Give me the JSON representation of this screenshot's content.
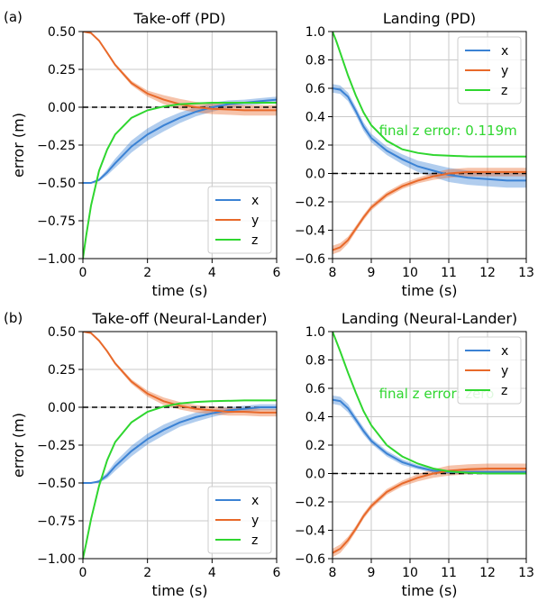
{
  "panel_labels": [
    "(a)",
    "(b)"
  ],
  "colors": {
    "x": "#3b82d4",
    "y": "#e8692a",
    "z": "#2fd62f"
  },
  "chart_data": [
    {
      "type": "line",
      "title": "Take-off (PD)",
      "xlabel": "time (s)",
      "ylabel": "error (m)",
      "xlim": [
        0,
        6
      ],
      "ylim": [
        -1.0,
        0.5
      ],
      "xticks": [
        0,
        2,
        4,
        6
      ],
      "xtick_labels": [
        "0",
        "2",
        "4",
        "6"
      ],
      "yticks": [
        -1.0,
        -0.75,
        -0.5,
        -0.25,
        0.0,
        0.25,
        0.5
      ],
      "ytick_labels": [
        "−1.00",
        "−0.75",
        "−0.50",
        "−0.25",
        "0.00",
        "0.25",
        "0.50"
      ],
      "grid": true,
      "reference_line": 0.0,
      "legend": "bottom-right",
      "annotation": "",
      "series": [
        {
          "name": "x",
          "x": [
            0,
            0.25,
            0.5,
            0.75,
            1.0,
            1.5,
            2.0,
            2.5,
            3.0,
            3.5,
            4.0,
            4.5,
            5.0,
            5.5,
            6.0
          ],
          "y": [
            -0.5,
            -0.5,
            -0.48,
            -0.43,
            -0.37,
            -0.26,
            -0.18,
            -0.12,
            -0.07,
            -0.03,
            0.0,
            0.02,
            0.03,
            0.04,
            0.05
          ],
          "band": [
            0,
            0,
            0.01,
            0.02,
            0.03,
            0.04,
            0.04,
            0.04,
            0.035,
            0.03,
            0.03,
            0.025,
            0.02,
            0.02,
            0.02
          ]
        },
        {
          "name": "y",
          "x": [
            0,
            0.25,
            0.5,
            0.75,
            1.0,
            1.5,
            2.0,
            2.5,
            3.0,
            3.5,
            4.0,
            4.5,
            5.0,
            5.5,
            6.0
          ],
          "y": [
            0.5,
            0.49,
            0.44,
            0.36,
            0.28,
            0.16,
            0.09,
            0.05,
            0.02,
            0.0,
            -0.01,
            -0.015,
            -0.02,
            -0.02,
            -0.02
          ],
          "band": [
            0,
            0,
            0.005,
            0.01,
            0.01,
            0.015,
            0.02,
            0.03,
            0.035,
            0.035,
            0.035,
            0.035,
            0.035,
            0.035,
            0.035
          ]
        },
        {
          "name": "z",
          "x": [
            0,
            0.1,
            0.25,
            0.5,
            0.75,
            1.0,
            1.5,
            2.0,
            2.5,
            3.0,
            3.5,
            4.0,
            5.0,
            6.0
          ],
          "y": [
            -1.0,
            -0.85,
            -0.65,
            -0.42,
            -0.28,
            -0.18,
            -0.07,
            -0.02,
            0.005,
            0.02,
            0.025,
            0.03,
            0.03,
            0.03
          ],
          "band": [
            0,
            0,
            0,
            0,
            0,
            0,
            0,
            0,
            0,
            0,
            0,
            0,
            0,
            0
          ]
        }
      ]
    },
    {
      "type": "line",
      "title": "Landing (PD)",
      "xlabel": "time (s)",
      "ylabel": "",
      "xlim": [
        8,
        13
      ],
      "ylim": [
        -0.6,
        1.0
      ],
      "xticks": [
        8,
        9,
        10,
        11,
        12,
        13
      ],
      "xtick_labels": [
        "8",
        "9",
        "10",
        "11",
        "12",
        "13"
      ],
      "yticks": [
        -0.6,
        -0.4,
        -0.2,
        0.0,
        0.2,
        0.4,
        0.6,
        0.8,
        1.0
      ],
      "ytick_labels": [
        "−0.6",
        "−0.4",
        "−0.2",
        "0.0",
        "0.2",
        "0.4",
        "0.6",
        "0.8",
        "1.0"
      ],
      "grid": true,
      "reference_line": 0.0,
      "legend": "top-right",
      "annotation": "final z error: 0.119m",
      "annotation_at": [
        9.2,
        0.27
      ],
      "series": [
        {
          "name": "x",
          "x": [
            8.0,
            8.2,
            8.4,
            8.6,
            8.8,
            9.0,
            9.4,
            9.8,
            10.2,
            10.6,
            11.0,
            11.5,
            12.0,
            12.5,
            13.0
          ],
          "y": [
            0.6,
            0.59,
            0.54,
            0.44,
            0.33,
            0.25,
            0.16,
            0.1,
            0.05,
            0.02,
            -0.01,
            -0.03,
            -0.04,
            -0.05,
            -0.05
          ],
          "band": [
            0.03,
            0.03,
            0.03,
            0.03,
            0.03,
            0.03,
            0.03,
            0.035,
            0.04,
            0.045,
            0.05,
            0.05,
            0.05,
            0.05,
            0.05
          ]
        },
        {
          "name": "y",
          "x": [
            8.0,
            8.2,
            8.4,
            8.6,
            8.8,
            9.0,
            9.4,
            9.8,
            10.2,
            10.6,
            11.0,
            11.5,
            12.0,
            12.5,
            13.0
          ],
          "y": [
            -0.54,
            -0.52,
            -0.47,
            -0.39,
            -0.31,
            -0.24,
            -0.15,
            -0.09,
            -0.05,
            -0.02,
            0.0,
            0.01,
            0.01,
            0.01,
            0.01
          ],
          "band": [
            0.03,
            0.03,
            0.025,
            0.02,
            0.02,
            0.02,
            0.02,
            0.02,
            0.02,
            0.025,
            0.03,
            0.03,
            0.03,
            0.03,
            0.03
          ]
        },
        {
          "name": "z",
          "x": [
            8.0,
            8.1,
            8.2,
            8.4,
            8.6,
            8.8,
            9.0,
            9.4,
            9.8,
            10.2,
            10.6,
            11.0,
            11.5,
            12.0,
            13.0
          ],
          "y": [
            1.0,
            0.93,
            0.85,
            0.69,
            0.55,
            0.43,
            0.34,
            0.23,
            0.17,
            0.145,
            0.13,
            0.125,
            0.12,
            0.119,
            0.119
          ],
          "band": [
            0,
            0,
            0,
            0,
            0,
            0,
            0,
            0,
            0,
            0,
            0,
            0,
            0,
            0,
            0
          ]
        }
      ]
    },
    {
      "type": "line",
      "title": "Take-off (Neural-Lander)",
      "xlabel": "time (s)",
      "ylabel": "error (m)",
      "xlim": [
        0,
        6
      ],
      "ylim": [
        -1.0,
        0.5
      ],
      "xticks": [
        0,
        2,
        4,
        6
      ],
      "xtick_labels": [
        "0",
        "2",
        "4",
        "6"
      ],
      "yticks": [
        -1.0,
        -0.75,
        -0.5,
        -0.25,
        0.0,
        0.25,
        0.5
      ],
      "ytick_labels": [
        "−1.00",
        "−0.75",
        "−0.50",
        "−0.25",
        "0.00",
        "0.25",
        "0.50"
      ],
      "grid": true,
      "reference_line": 0.0,
      "legend": "bottom-right",
      "annotation": "",
      "series": [
        {
          "name": "x",
          "x": [
            0,
            0.25,
            0.5,
            0.75,
            1.0,
            1.5,
            2.0,
            2.5,
            3.0,
            3.5,
            4.0,
            4.5,
            5.0,
            5.5,
            6.0
          ],
          "y": [
            -0.5,
            -0.5,
            -0.49,
            -0.45,
            -0.39,
            -0.29,
            -0.21,
            -0.15,
            -0.1,
            -0.065,
            -0.04,
            -0.02,
            -0.01,
            0.0,
            0.0
          ],
          "band": [
            0,
            0,
            0.01,
            0.02,
            0.03,
            0.035,
            0.035,
            0.035,
            0.03,
            0.03,
            0.025,
            0.02,
            0.02,
            0.02,
            0.02
          ]
        },
        {
          "name": "y",
          "x": [
            0,
            0.25,
            0.5,
            0.75,
            1.0,
            1.5,
            2.0,
            2.5,
            3.0,
            3.5,
            4.0,
            4.5,
            5.0,
            5.5,
            6.0
          ],
          "y": [
            0.5,
            0.49,
            0.44,
            0.37,
            0.29,
            0.17,
            0.09,
            0.04,
            0.01,
            -0.01,
            -0.02,
            -0.03,
            -0.03,
            -0.035,
            -0.035
          ],
          "band": [
            0,
            0,
            0.005,
            0.01,
            0.01,
            0.015,
            0.02,
            0.025,
            0.025,
            0.025,
            0.025,
            0.025,
            0.025,
            0.025,
            0.025
          ]
        },
        {
          "name": "z",
          "x": [
            0,
            0.1,
            0.25,
            0.5,
            0.75,
            1.0,
            1.5,
            2.0,
            2.5,
            3.0,
            3.5,
            4.0,
            5.0,
            6.0
          ],
          "y": [
            -1.0,
            -0.9,
            -0.74,
            -0.52,
            -0.35,
            -0.23,
            -0.1,
            -0.03,
            0.005,
            0.025,
            0.035,
            0.04,
            0.045,
            0.045
          ],
          "band": [
            0,
            0,
            0,
            0,
            0,
            0,
            0,
            0,
            0,
            0,
            0,
            0,
            0,
            0
          ]
        }
      ]
    },
    {
      "type": "line",
      "title": "Landing (Neural-Lander)",
      "xlabel": "time (s)",
      "ylabel": "",
      "xlim": [
        8,
        13
      ],
      "ylim": [
        -0.6,
        1.0
      ],
      "xticks": [
        8,
        9,
        10,
        11,
        12,
        13
      ],
      "xtick_labels": [
        "8",
        "9",
        "10",
        "11",
        "12",
        "13"
      ],
      "yticks": [
        -0.6,
        -0.4,
        -0.2,
        0.0,
        0.2,
        0.4,
        0.6,
        0.8,
        1.0
      ],
      "ytick_labels": [
        "−0.6",
        "−0.4",
        "−0.2",
        "0.0",
        "0.2",
        "0.4",
        "0.6",
        "0.8",
        "1.0"
      ],
      "grid": true,
      "reference_line": 0.0,
      "legend": "top-right",
      "annotation": "final z error: zero",
      "annotation_at": [
        9.2,
        0.53
      ],
      "series": [
        {
          "name": "x",
          "x": [
            8.0,
            8.2,
            8.4,
            8.6,
            8.8,
            9.0,
            9.4,
            9.8,
            10.2,
            10.6,
            11.0,
            11.5,
            12.0,
            12.5,
            13.0
          ],
          "y": [
            0.52,
            0.51,
            0.46,
            0.38,
            0.3,
            0.23,
            0.14,
            0.08,
            0.045,
            0.02,
            0.01,
            0.01,
            0.01,
            0.01,
            0.01
          ],
          "band": [
            0.03,
            0.03,
            0.03,
            0.025,
            0.025,
            0.02,
            0.02,
            0.02,
            0.015,
            0.015,
            0.015,
            0.015,
            0.015,
            0.015,
            0.015
          ]
        },
        {
          "name": "y",
          "x": [
            8.0,
            8.2,
            8.4,
            8.6,
            8.8,
            9.0,
            9.4,
            9.8,
            10.2,
            10.6,
            11.0,
            11.5,
            12.0,
            12.5,
            13.0
          ],
          "y": [
            -0.56,
            -0.53,
            -0.47,
            -0.39,
            -0.3,
            -0.23,
            -0.13,
            -0.07,
            -0.03,
            0.0,
            0.02,
            0.03,
            0.035,
            0.035,
            0.035
          ],
          "band": [
            0.03,
            0.03,
            0.025,
            0.02,
            0.02,
            0.02,
            0.02,
            0.02,
            0.025,
            0.03,
            0.035,
            0.035,
            0.035,
            0.035,
            0.035
          ]
        },
        {
          "name": "z",
          "x": [
            8.0,
            8.1,
            8.2,
            8.4,
            8.6,
            8.8,
            9.0,
            9.4,
            9.8,
            10.2,
            10.6,
            11.0,
            11.5,
            12.0,
            13.0
          ],
          "y": [
            1.0,
            0.93,
            0.86,
            0.71,
            0.57,
            0.44,
            0.34,
            0.2,
            0.12,
            0.07,
            0.035,
            0.015,
            0.005,
            0.0,
            0.0
          ],
          "band": [
            0,
            0,
            0,
            0,
            0,
            0,
            0,
            0,
            0,
            0,
            0,
            0,
            0,
            0,
            0
          ]
        }
      ]
    }
  ]
}
